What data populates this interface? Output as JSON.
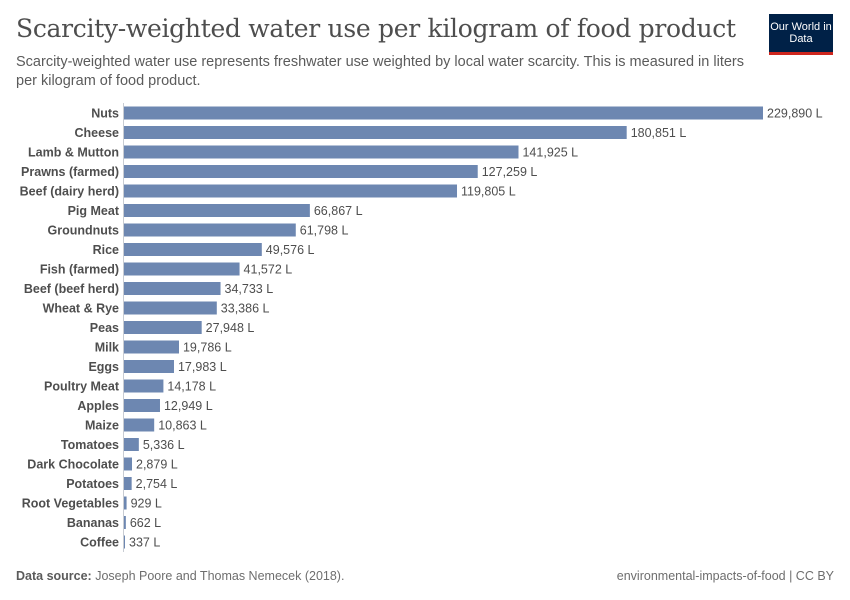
{
  "header": {
    "title": "Scarcity-weighted water use per kilogram of food product",
    "subtitle": "Scarcity-weighted water use represents freshwater use weighted by local water scarcity. This is measured in liters per kilogram of food product.",
    "logo_text": "Our World in Data"
  },
  "footer": {
    "source_label": "Data source:",
    "source": "Joseph Poore and Thomas Nemecek (2018).",
    "right": "environmental-impacts-of-food | CC BY"
  },
  "colors": {
    "bar": "#6d87b1",
    "axis": "#c8ccd3",
    "text": "#4e4e4e"
  },
  "chart_data": {
    "type": "bar",
    "orientation": "horizontal",
    "unit": "L",
    "categories": [
      "Nuts",
      "Cheese",
      "Lamb & Mutton",
      "Prawns (farmed)",
      "Beef (dairy herd)",
      "Pig Meat",
      "Groundnuts",
      "Rice",
      "Fish (farmed)",
      "Beef (beef herd)",
      "Wheat & Rye",
      "Peas",
      "Milk",
      "Eggs",
      "Poultry Meat",
      "Apples",
      "Maize",
      "Tomatoes",
      "Dark Chocolate",
      "Potatoes",
      "Root Vegetables",
      "Bananas",
      "Coffee"
    ],
    "values": [
      229890,
      180851,
      141925,
      127259,
      119805,
      66867,
      61798,
      49576,
      41572,
      34733,
      33386,
      27948,
      19786,
      17983,
      14178,
      12949,
      10863,
      5336,
      2879,
      2754,
      929,
      662,
      337
    ],
    "labels": [
      "229,890 L",
      "180,851 L",
      "141,925 L",
      "127,259 L",
      "119,805 L",
      "66,867 L",
      "61,798 L",
      "49,576 L",
      "41,572 L",
      "34,733 L",
      "33,386 L",
      "27,948 L",
      "19,786 L",
      "17,983 L",
      "14,178 L",
      "12,949 L",
      "10,863 L",
      "5,336 L",
      "2,879 L",
      "2,754 L",
      "929 L",
      "662 L",
      "337 L"
    ]
  }
}
